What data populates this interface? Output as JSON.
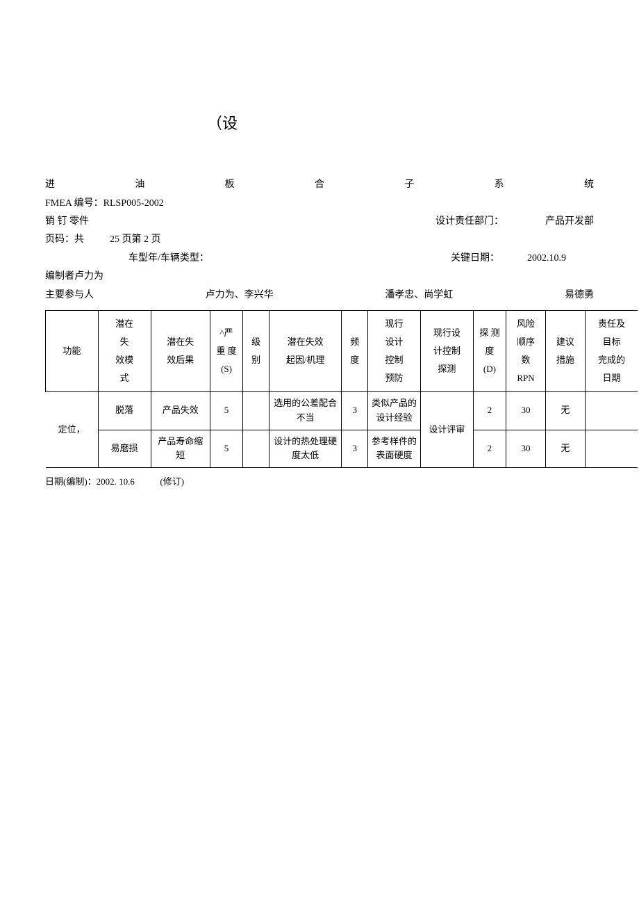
{
  "title": "（设",
  "subsystem_line": {
    "c1": "进",
    "c2": "油",
    "c3": "板",
    "c4": "合",
    "c5": "子",
    "c6": "系",
    "c7": "统"
  },
  "fmea_no_label": "FMEA 编号：",
  "fmea_no": "RLSP005-2002",
  "part_label": "销 钉  零件",
  "dept_label": "设计责任部门：",
  "dept_value": "产品开发部",
  "page_label": "页码：共",
  "page_total": "25",
  "page_mid": "页第",
  "page_cur": "2",
  "page_suffix": "页",
  "vehicle_label": "车型年/车辆类型：",
  "keydate_label": "关键日期：",
  "keydate_value": "2002.10.9",
  "author_label": "编制者",
  "author_value": "卢力为",
  "participants_label": "主要参与人",
  "participants_1": "卢力为、李兴华",
  "participants_2": "潘孝忠、尚学虹",
  "participants_3": "易德勇",
  "columns": {
    "func": "功能",
    "fail_mode": "潜在\n失\n效模\n式",
    "fail_effect": "潜在失\n效后果",
    "severity": "^严\n重 度\n(S)",
    "class": "级\n别",
    "cause": "潜在失效\n起因/机理",
    "occur": "频\n度",
    "ctrl_prev": "现行\n设计\n控制\n预防",
    "ctrl_det": "现行设\n计控制\n探测",
    "detect": "探 测\n度\n(D)",
    "rpn": "风险\n顺序\n数\nRPN",
    "action": "建议\n措施",
    "resp": "责任及\n目标\n完成的\n日期"
  },
  "rows": [
    {
      "func": "定位，",
      "mode": "脱落",
      "effect": "产品失效",
      "sev": "5",
      "cls": "",
      "cause": "选用的公差配合不当",
      "occ": "3",
      "prev": "类似产品的设计经验",
      "det_ctrl": "设计评审",
      "det": "2",
      "rpn": "30",
      "act": "无"
    },
    {
      "mode": "易磨损",
      "effect": "产品寿命缩短",
      "sev": "5",
      "cls": "",
      "cause": "设计的热处理硬度太低",
      "occ": "3",
      "prev": "参考样件的表面硬度",
      "det": "2",
      "rpn": "30",
      "act": "无"
    }
  ],
  "footer_date_label": "日期(编制)：",
  "footer_date_value": "2002. 10.6",
  "footer_rev": "(修订)",
  "colors": {
    "text": "#000000",
    "bg": "#ffffff",
    "border": "#000000"
  },
  "col_widths_pct": [
    8,
    8,
    9,
    5,
    4,
    11,
    4,
    8,
    8,
    5,
    6,
    6,
    8
  ]
}
